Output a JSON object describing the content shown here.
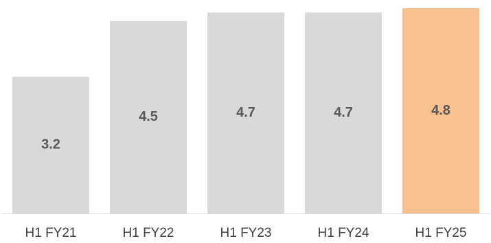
{
  "chart_data": {
    "type": "bar",
    "title": "",
    "xlabel": "",
    "ylabel": "",
    "categories": [
      "H1 FY21",
      "H1 FY22",
      "H1 FY23",
      "H1 FY24",
      "H1 FY25"
    ],
    "values": [
      3.2,
      4.5,
      4.7,
      4.7,
      4.8
    ],
    "value_labels": [
      "3.2",
      "4.5",
      "4.7",
      "4.7",
      "4.8"
    ],
    "ylim": [
      0,
      5
    ],
    "grid": false,
    "legend": "none",
    "colors": {
      "default_bar": "#d9d9d9",
      "highlight_bar": "#f8bf8f",
      "axis": "#d9d9d9",
      "value_text": "#595959",
      "tick_text": "#404040"
    },
    "highlight_index": 4
  }
}
